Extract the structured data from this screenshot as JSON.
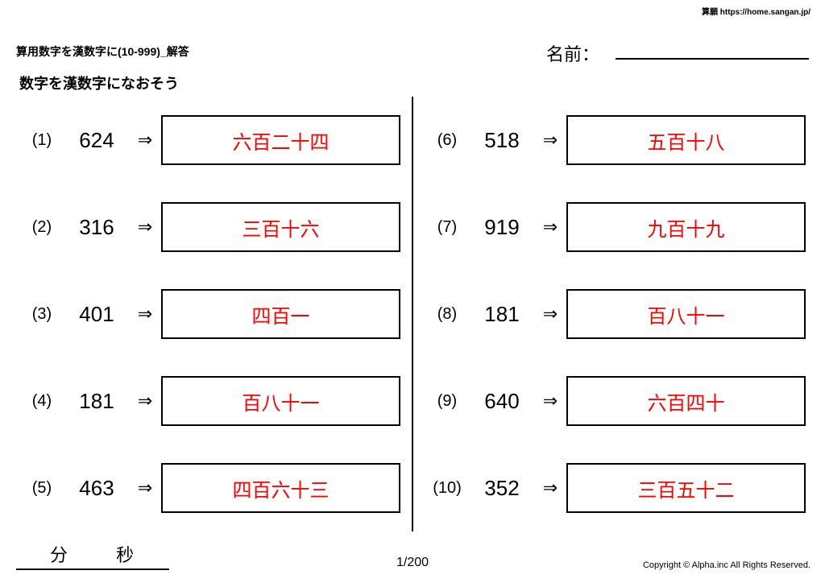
{
  "source_line": "算願 https://home.sangan.jp/",
  "header_title": "算用数字を漢数字に(10-999)_解答",
  "name_label": "名前：",
  "subtitle": "数字を漢数字になおそう",
  "columns": {
    "left": [
      {
        "num": "(1)",
        "arabic": "624",
        "kanji": "六百二十四"
      },
      {
        "num": "(2)",
        "arabic": "316",
        "kanji": "三百十六"
      },
      {
        "num": "(3)",
        "arabic": "401",
        "kanji": "四百一"
      },
      {
        "num": "(4)",
        "arabic": "181",
        "kanji": "百八十一"
      },
      {
        "num": "(5)",
        "arabic": "463",
        "kanji": "四百六十三"
      }
    ],
    "right": [
      {
        "num": "(6)",
        "arabic": "518",
        "kanji": "五百十八"
      },
      {
        "num": "(7)",
        "arabic": "919",
        "kanji": "九百十九"
      },
      {
        "num": "(8)",
        "arabic": "181",
        "kanji": "百八十一"
      },
      {
        "num": "(9)",
        "arabic": "640",
        "kanji": "六百四十"
      },
      {
        "num": "(10)",
        "arabic": "352",
        "kanji": "三百五十二"
      }
    ]
  },
  "arrow": "⇒",
  "time_min_label": "分",
  "time_sec_label": "秒",
  "page_num": "1/200",
  "copyright": "Copyright © Alpha.inc All Rights Reserved.",
  "colors": {
    "answer_text": "#ff0000",
    "text": "#000000",
    "bg": "#ffffff"
  }
}
